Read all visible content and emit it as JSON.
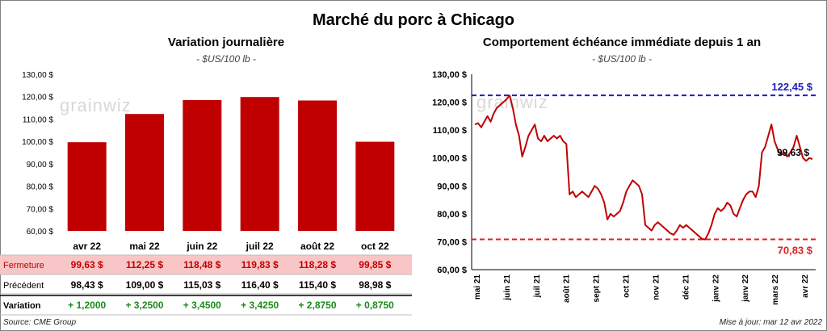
{
  "title": "Marché du porc à Chicago",
  "source": "Source: CME Group",
  "updated": "Mise à jour: mar 12 avr 2022",
  "watermark": "grainwiz",
  "colors": {
    "bar": "#c00000",
    "line": "#c00000",
    "high": "#1f1fbf",
    "low": "#e02020",
    "up": "#1a8a1a"
  },
  "chart_data": [
    {
      "type": "bar",
      "title": "Variation journalière",
      "subtitle": "- $US/100 lb -",
      "categories": [
        "avr 22",
        "mai 22",
        "juin 22",
        "juil 22",
        "août 22",
        "oct 22"
      ],
      "values": [
        99.63,
        112.25,
        118.48,
        119.83,
        118.28,
        99.85
      ],
      "ylim": [
        60,
        130
      ],
      "yticks": [
        "60,00 $",
        "70,00 $",
        "80,00 $",
        "90,00 $",
        "100,00 $",
        "110,00 $",
        "120,00 $",
        "130,00 $"
      ],
      "table": {
        "rows": [
          {
            "label": "Fermeture",
            "values": [
              "99,63  $",
              "112,25  $",
              "118,48  $",
              "119,83  $",
              "118,28  $",
              "99,85  $"
            ]
          },
          {
            "label": "Précédent",
            "values": [
              "98,43  $",
              "109,00  $",
              "115,03  $",
              "116,40  $",
              "115,40  $",
              "98,98  $"
            ]
          },
          {
            "label": "Variation",
            "values": [
              "+ 1,2000",
              "+ 3,2500",
              "+ 3,4500",
              "+ 3,4250",
              "+ 2,8750",
              "+ 0,8750"
            ]
          }
        ]
      }
    },
    {
      "type": "line",
      "title": "Comportement  échéance immédiate depuis 1 an",
      "subtitle": "- $US/100 lb -",
      "ylim": [
        60,
        130
      ],
      "yticks": [
        "60,00 $",
        "70,00 $",
        "80,00 $",
        "90,00 $",
        "100,00 $",
        "110,00 $",
        "120,00 $",
        "130,00 $"
      ],
      "xlabels": [
        "mai 21",
        "juin 21",
        "juil 21",
        "août 21",
        "sept 21",
        "oct 21",
        "nov 21",
        "déc 21",
        "janv 22",
        "janv 22",
        "mars 22",
        "avr 22"
      ],
      "high": 122.45,
      "high_label": "122,45 $",
      "low": 70.83,
      "low_label": "70,83 $",
      "last": 99.63,
      "last_label": "99,63 $",
      "series": [
        112,
        112.5,
        111,
        113,
        115,
        113,
        116,
        118,
        119,
        120,
        121,
        122.4,
        118,
        112,
        108,
        100.5,
        104,
        108,
        110,
        112,
        107,
        106,
        108,
        106,
        107,
        108,
        107,
        108,
        106,
        105,
        87,
        88,
        86,
        87,
        88,
        87,
        86,
        88,
        90,
        89,
        87,
        84,
        78,
        80,
        79,
        80,
        81,
        84,
        88,
        90,
        92,
        91,
        90,
        87,
        76,
        75,
        74,
        76,
        77,
        76,
        75,
        74,
        73,
        72.5,
        74,
        76,
        75,
        76,
        75,
        74,
        73,
        72,
        71,
        70.83,
        73,
        76,
        80,
        82,
        81,
        82,
        84,
        83,
        80,
        79,
        82,
        85,
        87,
        88,
        88,
        86,
        90,
        102,
        104,
        108,
        112,
        106,
        103,
        101,
        102,
        100.5,
        102,
        104,
        108,
        104,
        100,
        99,
        100,
        99.63
      ]
    }
  ]
}
